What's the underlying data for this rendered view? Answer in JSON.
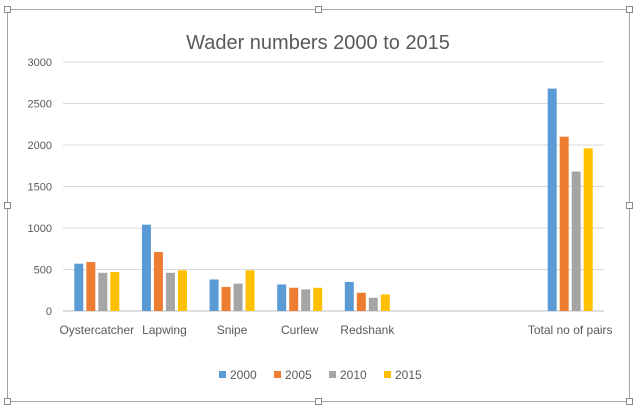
{
  "chart_data": {
    "type": "bar",
    "title": "Wader numbers 2000 to 2015",
    "xlabel": "",
    "ylabel": "",
    "categories": [
      "Oystercatcher",
      "Lapwing",
      "Snipe",
      "Curlew",
      "Redshank",
      "",
      "",
      "Total no of pairs"
    ],
    "series": [
      {
        "name": "2000",
        "color": "#5b9bd5",
        "values": [
          570,
          1040,
          380,
          320,
          350,
          null,
          null,
          2680
        ]
      },
      {
        "name": "2005",
        "color": "#ed7d31",
        "values": [
          590,
          710,
          290,
          280,
          220,
          null,
          null,
          2100
        ]
      },
      {
        "name": "2010",
        "color": "#a5a5a5",
        "values": [
          460,
          460,
          330,
          260,
          160,
          null,
          null,
          1680
        ]
      },
      {
        "name": "2015",
        "color": "#ffc000",
        "values": [
          470,
          490,
          490,
          280,
          200,
          null,
          null,
          1960
        ]
      }
    ],
    "ylim": [
      0,
      3000
    ],
    "yticks": [
      0,
      500,
      1000,
      1500,
      2000,
      2500,
      3000
    ],
    "grid": true,
    "legend": "bottom",
    "colors": {
      "grid": "#d9d9d9",
      "axis_text": "#595959",
      "title": "#595959"
    }
  }
}
